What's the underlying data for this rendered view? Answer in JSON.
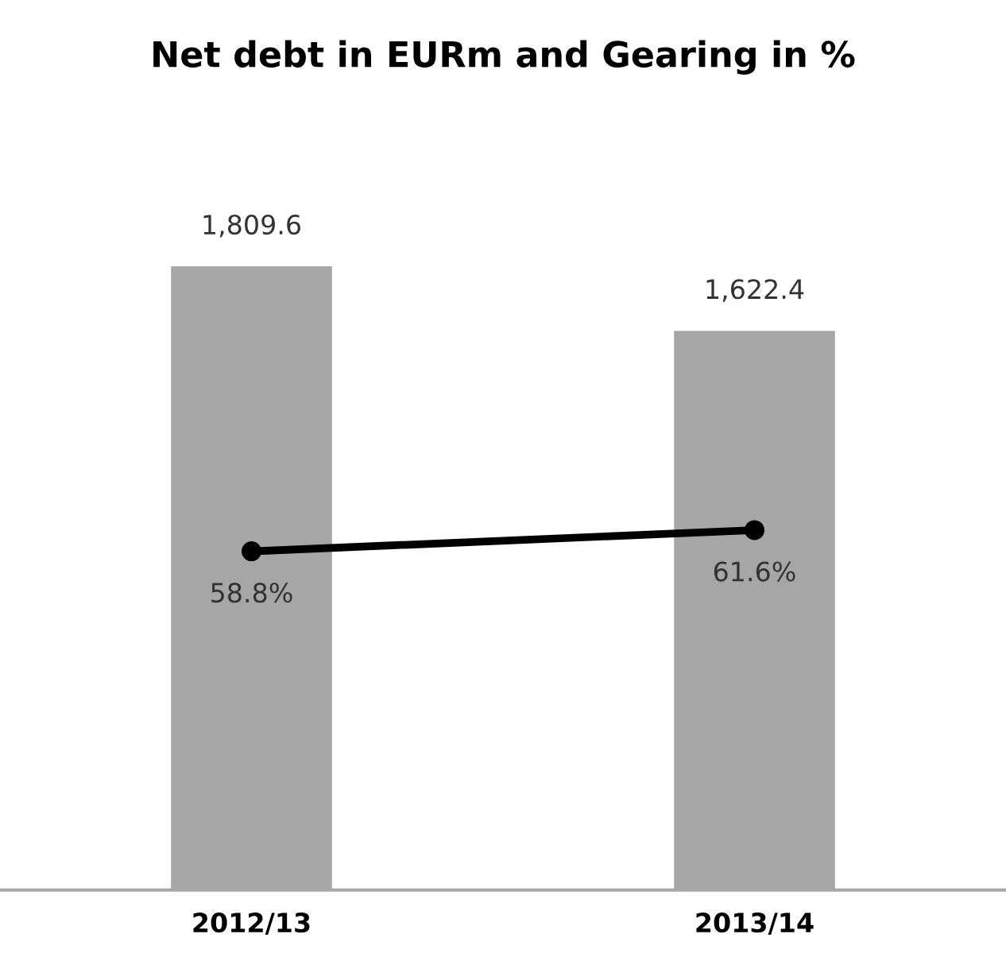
{
  "chart_data": {
    "type": "bar",
    "title": "Net debt in EURm and Gearing in %",
    "categories": [
      "2012/13",
      "2013/14"
    ],
    "series": [
      {
        "color": "#a6a6a6",
        "values": [
          1809.6,
          1622.4
        ],
        "value_labels": [
          "1,809.6",
          "1,622.4"
        ]
      },
      {
        "type": "line",
        "axis": "y2",
        "color": "#000000",
        "values": [
          58.8,
          61.6
        ],
        "value_labels": [
          "58.8%",
          "61.6%"
        ],
        "marker": "circle",
        "line_style": "solid"
      }
    ],
    "tick_labels": "x",
    "grid": false
  }
}
